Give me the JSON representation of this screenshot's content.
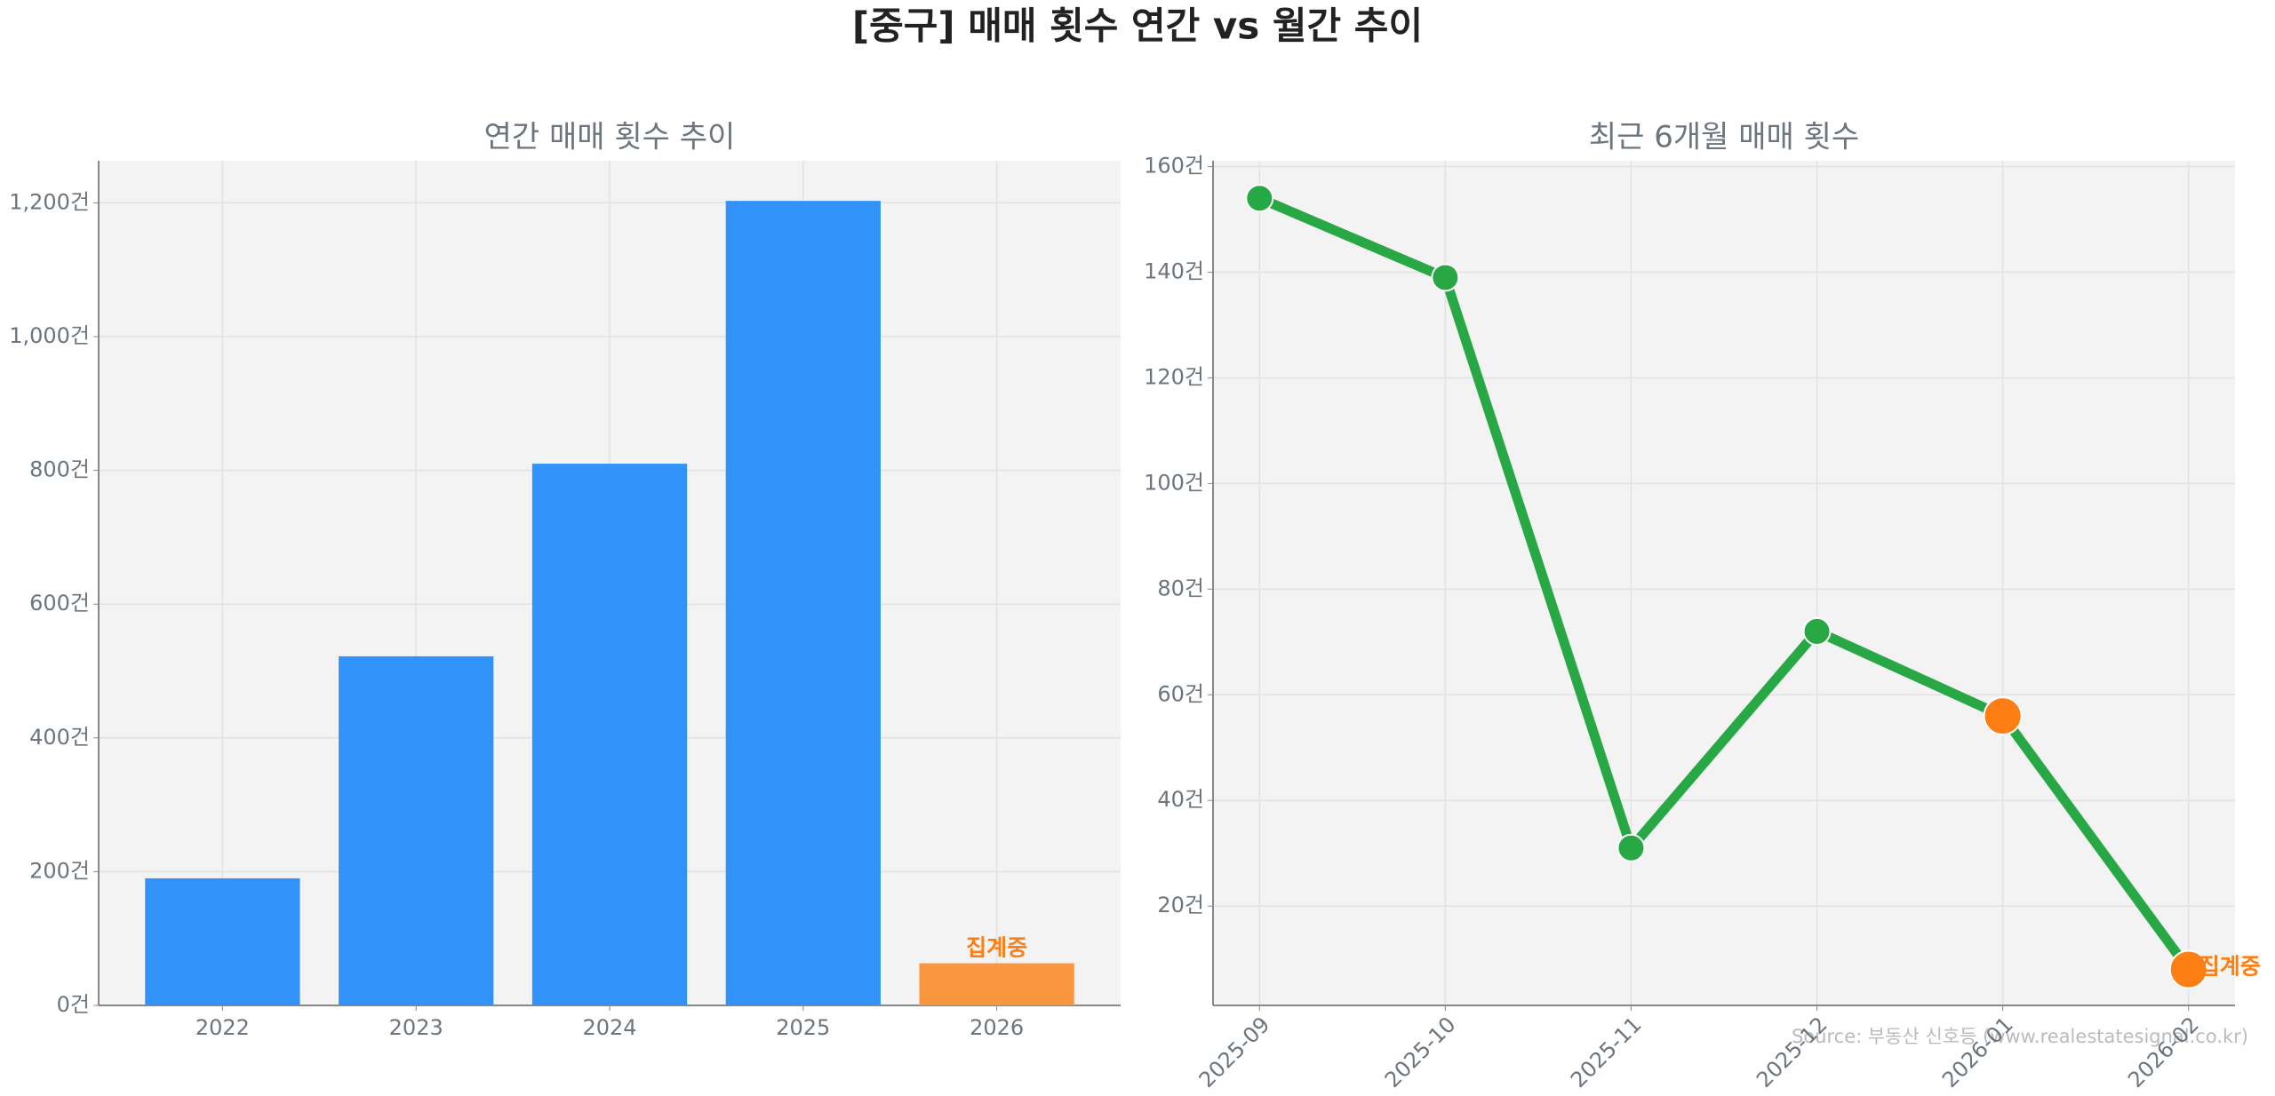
{
  "title": "[중구] 매매 횟수 연간 vs 월간 추이",
  "source": "Source: 부동산 신호등 (www.realestatesignal.co.kr)",
  "chart_data": [
    {
      "type": "bar",
      "title": "연간 매매 횟수 추이",
      "categories": [
        "2022",
        "2023",
        "2024",
        "2025",
        "2026"
      ],
      "values": [
        190,
        522,
        810,
        1203,
        63
      ],
      "colors": [
        "#3192fa",
        "#3192fa",
        "#3192fa",
        "#3192fa",
        "#f9963f"
      ],
      "ylim": [
        0,
        1263
      ],
      "yticks": [
        {
          "value": 0,
          "label": "0건"
        },
        {
          "value": 200,
          "label": "200건"
        },
        {
          "value": 400,
          "label": "400건"
        },
        {
          "value": 600,
          "label": "600건"
        },
        {
          "value": 800,
          "label": "800건"
        },
        {
          "value": 1000,
          "label": "1,000건"
        },
        {
          "value": 1200,
          "label": "1,200건"
        }
      ],
      "grid": true,
      "annotations": [
        {
          "text": "집계중",
          "category": "2026",
          "color": "#fd7e14"
        }
      ]
    },
    {
      "type": "line",
      "title": "최근 6개월 매매 횟수",
      "categories": [
        "2025-09",
        "2025-10",
        "2025-11",
        "2025-12",
        "2026-01",
        "2026-02"
      ],
      "values": [
        154,
        139,
        31,
        72,
        56,
        8
      ],
      "color": "#28a745",
      "marker_colors": [
        "#28a745",
        "#28a745",
        "#28a745",
        "#28a745",
        "#fd7e14",
        "#fd7e14"
      ],
      "ylim": [
        1.2,
        161.1
      ],
      "yticks": [
        {
          "value": 20,
          "label": "20건"
        },
        {
          "value": 40,
          "label": "40건"
        },
        {
          "value": 60,
          "label": "60건"
        },
        {
          "value": 80,
          "label": "80건"
        },
        {
          "value": 100,
          "label": "100건"
        },
        {
          "value": 120,
          "label": "120건"
        },
        {
          "value": 140,
          "label": "140건"
        },
        {
          "value": 160,
          "label": "160건"
        }
      ],
      "grid": true,
      "annotations": [
        {
          "text": "집계중",
          "category": "2026-02",
          "color": "#fd7e14"
        }
      ]
    }
  ]
}
